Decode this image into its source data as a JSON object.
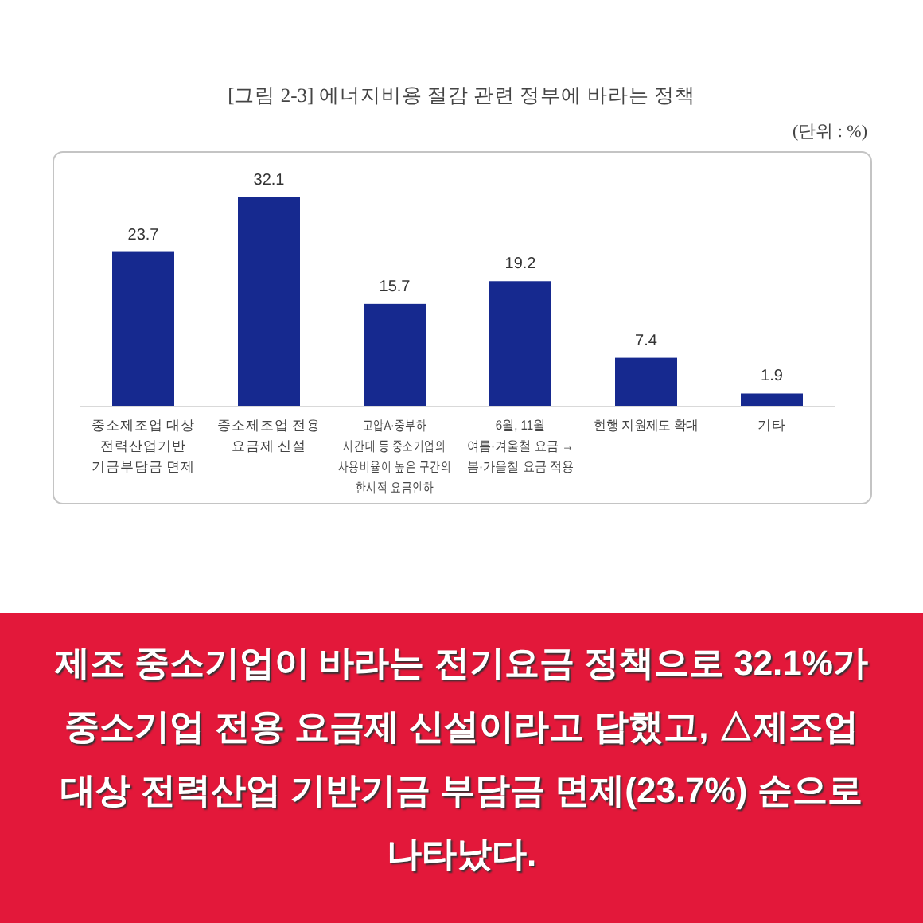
{
  "chart_data": {
    "type": "bar",
    "title": "[그림 2-3] 에너지비용 절감 관련 정부에 바라는 정책",
    "subtitle": "(단위 : %)",
    "categories": [
      "중소제조업 대상\n전력산업기반\n기금부담금 면제",
      "중소제조업 전용\n요금제 신설",
      "고압A·중부하\n시간대 등 중소기업의\n사용비율이 높은 구간의\n한시적 요금인하",
      "6월, 11월\n여름·겨울철 요금 →\n봄·가을철 요금 적용",
      "현행 지원제도 확대",
      "기타"
    ],
    "values": [
      23.7,
      32.1,
      15.7,
      19.2,
      7.4,
      1.9
    ],
    "color": "#16298f",
    "data_labels": true,
    "annotations": [
      "제조 중소기업이 바라는 전기요금 정책으로 32.1%가 중소기업 전용 요금제 신설이라고 답했고, △제조업 대상 전력산업 기반기금 부담금 면제(23.7%) 순으로 나타났다."
    ]
  }
}
